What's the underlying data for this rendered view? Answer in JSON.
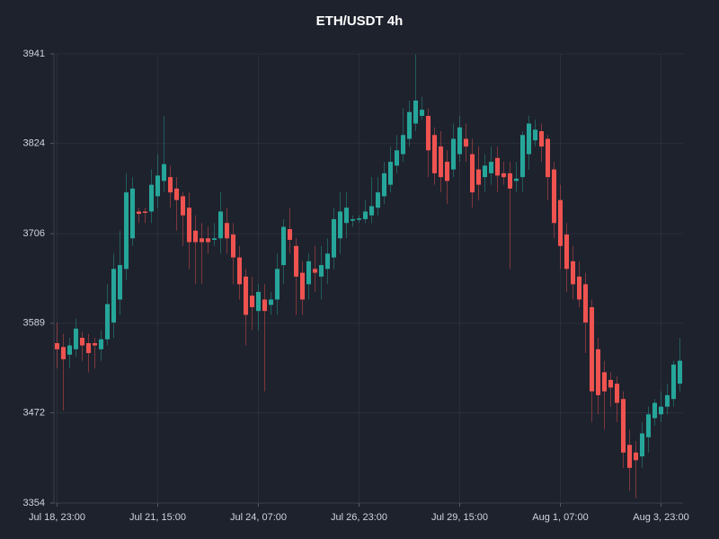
{
  "chart_data": {
    "type": "candlestick",
    "title": "ETH/USDT 4h",
    "categories": [
      "Jul 18, 23:00",
      null,
      null,
      null,
      null,
      null,
      null,
      null,
      null,
      null,
      null,
      null,
      null,
      null,
      null,
      null,
      "Jul 21, 15:00",
      null,
      null,
      null,
      null,
      null,
      null,
      null,
      null,
      null,
      null,
      null,
      null,
      null,
      null,
      null,
      "Jul 24, 07:00",
      null,
      null,
      null,
      null,
      null,
      null,
      null,
      null,
      null,
      null,
      null,
      null,
      null,
      null,
      null,
      "Jul 26, 23:00",
      null,
      null,
      null,
      null,
      null,
      null,
      null,
      null,
      null,
      null,
      null,
      null,
      null,
      null,
      null,
      "Jul 29, 15:00",
      null,
      null,
      null,
      null,
      null,
      null,
      null,
      null,
      null,
      null,
      null,
      null,
      null,
      null,
      null,
      "Aug 1, 07:00",
      null,
      null,
      null,
      null,
      null,
      null,
      null,
      null,
      null,
      null,
      null,
      null,
      null,
      null,
      null,
      "Aug 3, 23:00",
      null,
      null,
      null
    ],
    "open": [
      3563,
      3558,
      3548,
      3555,
      3570,
      3563,
      3563,
      3555,
      3568,
      3590,
      3620,
      3660,
      3700,
      3735,
      3735,
      3735,
      3755,
      3775,
      3780,
      3765,
      3755,
      3740,
      3710,
      3700,
      3700,
      3698,
      3700,
      3720,
      3705,
      3675,
      3650,
      3625,
      3605,
      3620,
      3613,
      3620,
      3665,
      3712,
      3690,
      3655,
      3640,
      3660,
      3650,
      3660,
      3675,
      3700,
      3720,
      3723,
      3725,
      3725,
      3730,
      3740,
      3755,
      3770,
      3795,
      3810,
      3830,
      3850,
      3860,
      3860,
      3835,
      3820,
      3800,
      3790,
      3810,
      3830,
      3810,
      3790,
      3780,
      3785,
      3805,
      3785,
      3785,
      3775,
      3780,
      3810,
      3828,
      3840,
      3830,
      3790,
      3750,
      3705,
      3670,
      3650,
      3640,
      3610,
      3555,
      3525,
      3515,
      3510,
      3490,
      3430,
      3420,
      3415,
      3440,
      3465,
      3470,
      3480,
      3490,
      3510
    ],
    "high": [
      3590,
      3575,
      3570,
      3595,
      3578,
      3575,
      3570,
      3580,
      3640,
      3680,
      3710,
      3785,
      3780,
      3740,
      3740,
      3790,
      3810,
      3860,
      3795,
      3780,
      3760,
      3760,
      3730,
      3720,
      3715,
      3720,
      3760,
      3740,
      3720,
      3690,
      3660,
      3650,
      3640,
      3640,
      3630,
      3680,
      3725,
      3740,
      3700,
      3670,
      3680,
      3690,
      3690,
      3700,
      3740,
      3760,
      3760,
      3730,
      3730,
      3750,
      3780,
      3780,
      3800,
      3820,
      3835,
      3870,
      3880,
      3940,
      3885,
      3870,
      3845,
      3840,
      3815,
      3850,
      3860,
      3850,
      3830,
      3820,
      3810,
      3820,
      3820,
      3800,
      3800,
      3800,
      3840,
      3860,
      3855,
      3850,
      3835,
      3800,
      3770,
      3720,
      3690,
      3670,
      3655,
      3620,
      3570,
      3540,
      3525,
      3520,
      3500,
      3450,
      3435,
      3460,
      3480,
      3490,
      3500,
      3510,
      3540,
      3570
    ],
    "low": [
      3530,
      3475,
      3530,
      3545,
      3540,
      3525,
      3530,
      3540,
      3560,
      3570,
      3600,
      3645,
      3690,
      3720,
      3720,
      3720,
      3740,
      3760,
      3740,
      3710,
      3690,
      3660,
      3640,
      3640,
      3680,
      3690,
      3680,
      3680,
      3640,
      3620,
      3560,
      3580,
      3580,
      3500,
      3600,
      3600,
      3640,
      3680,
      3600,
      3600,
      3620,
      3630,
      3620,
      3640,
      3660,
      3680,
      3700,
      3715,
      3720,
      3720,
      3720,
      3730,
      3745,
      3760,
      3785,
      3800,
      3820,
      3840,
      3855,
      3780,
      3770,
      3760,
      3745,
      3780,
      3800,
      3800,
      3740,
      3750,
      3760,
      3770,
      3760,
      3770,
      3660,
      3760,
      3760,
      3790,
      3820,
      3800,
      3750,
      3700,
      3660,
      3630,
      3620,
      3610,
      3550,
      3460,
      3470,
      3450,
      3480,
      3460,
      3400,
      3370,
      3360,
      3400,
      3420,
      3455,
      3460,
      3470,
      3480,
      3500
    ],
    "close": [
      3555,
      3542,
      3560,
      3582,
      3560,
      3550,
      3560,
      3568,
      3614,
      3660,
      3665,
      3760,
      3765,
      3732,
      3734,
      3770,
      3782,
      3797,
      3760,
      3750,
      3730,
      3695,
      3695,
      3695,
      3695,
      3700,
      3735,
      3700,
      3675,
      3640,
      3600,
      3610,
      3630,
      3605,
      3620,
      3660,
      3715,
      3698,
      3650,
      3620,
      3670,
      3655,
      3665,
      3680,
      3725,
      3735,
      3740,
      3725,
      3726,
      3735,
      3742,
      3760,
      3785,
      3800,
      3815,
      3835,
      3865,
      3880,
      3868,
      3815,
      3785,
      3780,
      3775,
      3830,
      3845,
      3820,
      3760,
      3770,
      3795,
      3800,
      3782,
      3780,
      3765,
      3778,
      3835,
      3850,
      3842,
      3820,
      3780,
      3720,
      3690,
      3660,
      3640,
      3620,
      3590,
      3500,
      3495,
      3500,
      3505,
      3485,
      3420,
      3400,
      3410,
      3445,
      3470,
      3485,
      3480,
      3495,
      3535,
      3540
    ],
    "up_color": "#26a69a",
    "down_color": "#ef5350",
    "ylim": [
      3354,
      3941
    ],
    "yticks": [
      3354,
      3472,
      3589,
      3706,
      3824,
      3941
    ],
    "grid": true
  }
}
